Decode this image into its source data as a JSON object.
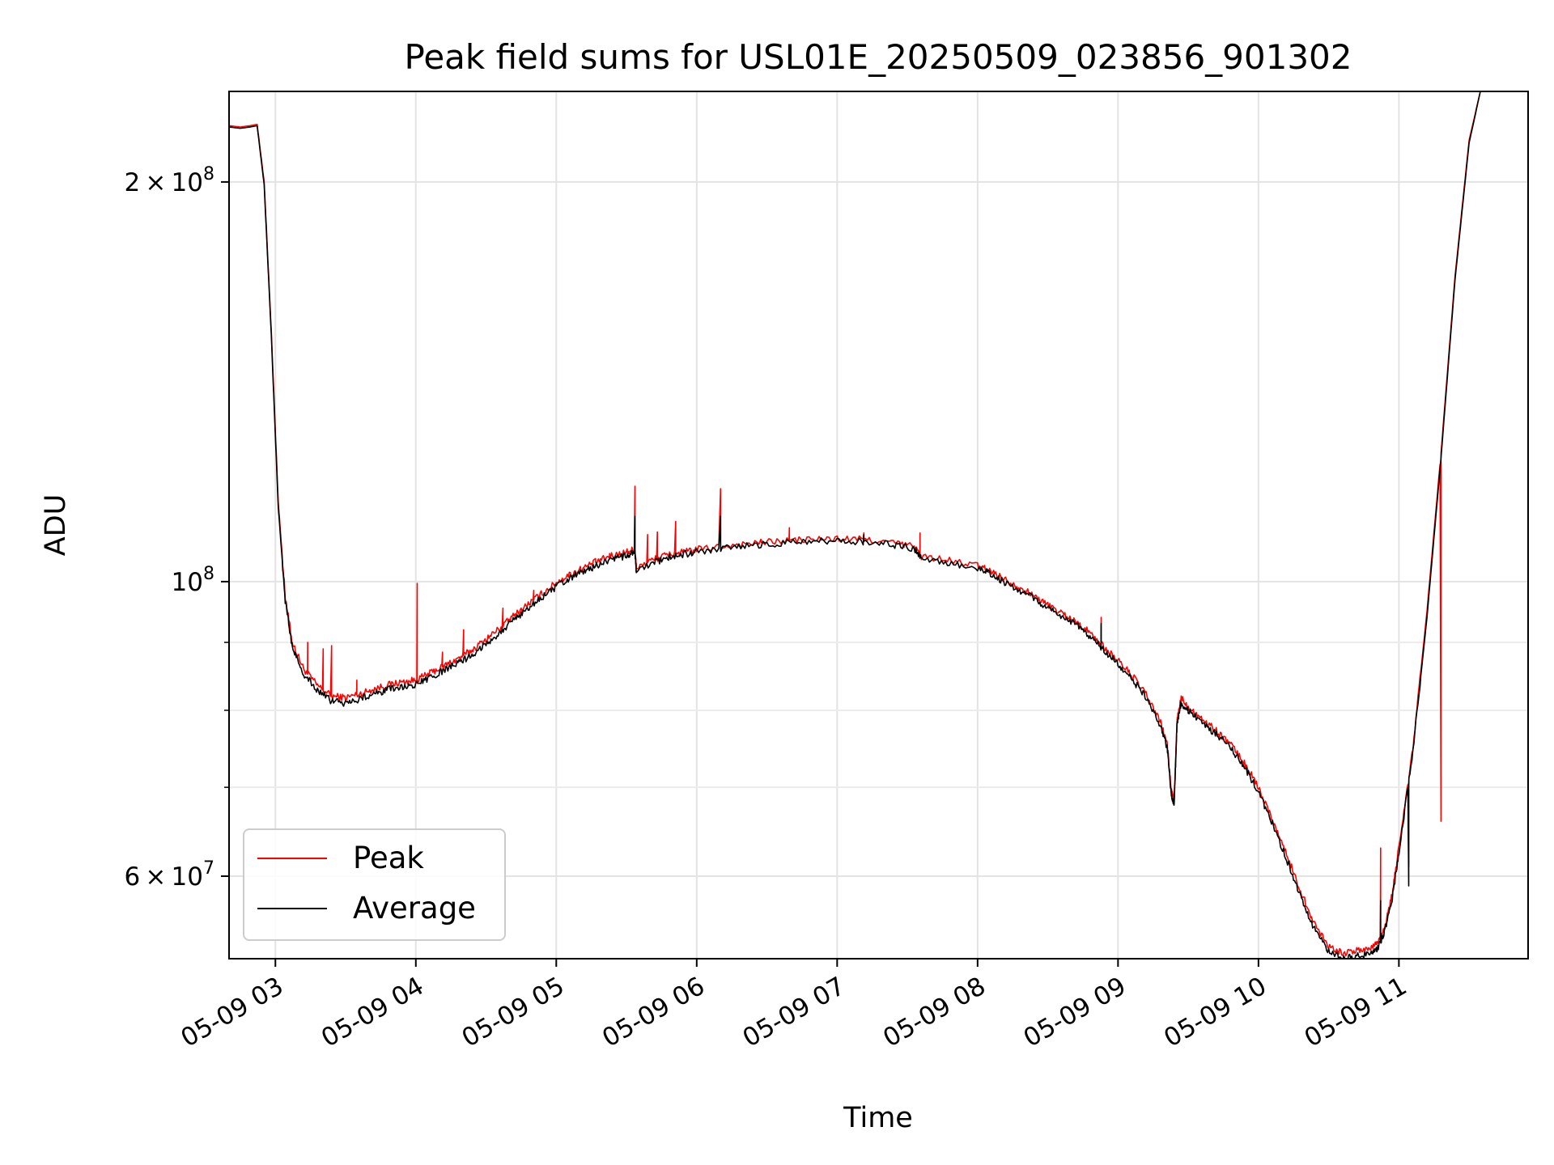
{
  "chart_data": {
    "type": "line",
    "title": "Peak field sums for USL01E_20250509_023856_901302",
    "xlabel": "Time",
    "ylabel": "ADU",
    "x_unit": "hour of 2025-05-09",
    "xlim": [
      2.67,
      11.92
    ],
    "ylim": [
      52000000,
      234000000
    ],
    "yscale": "log",
    "grid": true,
    "legend": "lower-left",
    "x_ticks": [
      {
        "value": 3,
        "label": "05-09 03"
      },
      {
        "value": 4,
        "label": "05-09 04"
      },
      {
        "value": 5,
        "label": "05-09 05"
      },
      {
        "value": 6,
        "label": "05-09 06"
      },
      {
        "value": 7,
        "label": "05-09 07"
      },
      {
        "value": 8,
        "label": "05-09 08"
      },
      {
        "value": 9,
        "label": "05-09 09"
      },
      {
        "value": 10,
        "label": "05-09 10"
      },
      {
        "value": 11,
        "label": "05-09 11"
      }
    ],
    "y_ticks": [
      {
        "value": 200000000,
        "base": "2",
        "exp": "8"
      },
      {
        "value": 100000000,
        "base": "",
        "exp": "8"
      },
      {
        "value": 60000000,
        "base": "6",
        "exp": "7"
      }
    ],
    "y_minor": [
      70000000,
      80000000,
      90000000
    ],
    "series": [
      {
        "name": "Peak",
        "color": "#ff0000",
        "points": [
          [
            2.67,
            220500000
          ],
          [
            2.75,
            220000000
          ],
          [
            2.82,
            220500000
          ],
          [
            2.87,
            221000000
          ],
          [
            2.92,
            200000000
          ],
          [
            2.97,
            155000000
          ],
          [
            3.02,
            115000000
          ],
          [
            3.07,
            97500000
          ],
          [
            3.12,
            90000000
          ],
          [
            3.2,
            86000000
          ],
          [
            3.3,
            83500000
          ],
          [
            3.4,
            82000000
          ],
          [
            3.5,
            81800000
          ],
          [
            3.6,
            82300000
          ],
          [
            3.7,
            83000000
          ],
          [
            3.8,
            83600000
          ],
          [
            3.9,
            84000000
          ],
          [
            4.0,
            84300000
          ],
          [
            4.1,
            85300000
          ],
          [
            4.2,
            86400000
          ],
          [
            4.3,
            87500000
          ],
          [
            4.4,
            88800000
          ],
          [
            4.5,
            90500000
          ],
          [
            4.6,
            92300000
          ],
          [
            4.7,
            94300000
          ],
          [
            4.8,
            96200000
          ],
          [
            4.9,
            98000000
          ],
          [
            5.0,
            99800000
          ],
          [
            5.1,
            101300000
          ],
          [
            5.2,
            102500000
          ],
          [
            5.3,
            103700000
          ],
          [
            5.4,
            104600000
          ],
          [
            5.5,
            105300000
          ],
          [
            5.56,
            105800000
          ],
          [
            5.57,
            102500000
          ],
          [
            5.7,
            104000000
          ],
          [
            5.8,
            104800000
          ],
          [
            5.9,
            105200000
          ],
          [
            6.0,
            105700000
          ],
          [
            6.2,
            106400000
          ],
          [
            6.4,
            106900000
          ],
          [
            6.6,
            107300000
          ],
          [
            6.8,
            107600000
          ],
          [
            7.0,
            107700000
          ],
          [
            7.2,
            107600000
          ],
          [
            7.4,
            107000000
          ],
          [
            7.55,
            106300000
          ],
          [
            7.6,
            104500000
          ],
          [
            7.8,
            103700000
          ],
          [
            8.0,
            102800000
          ],
          [
            8.1,
            101800000
          ],
          [
            8.2,
            100300000
          ],
          [
            8.3,
            99000000
          ],
          [
            8.4,
            97600000
          ],
          [
            8.5,
            96000000
          ],
          [
            8.6,
            94700000
          ],
          [
            8.7,
            93300000
          ],
          [
            8.8,
            91500000
          ],
          [
            8.9,
            89300000
          ],
          [
            9.0,
            87200000
          ],
          [
            9.1,
            85000000
          ],
          [
            9.2,
            82200000
          ],
          [
            9.3,
            78500000
          ],
          [
            9.35,
            75500000
          ],
          [
            9.38,
            69500000
          ],
          [
            9.4,
            68500000
          ],
          [
            9.42,
            78500000
          ],
          [
            9.45,
            81800000
          ],
          [
            9.5,
            80500000
          ],
          [
            9.6,
            78800000
          ],
          [
            9.7,
            77200000
          ],
          [
            9.8,
            75500000
          ],
          [
            9.9,
            73000000
          ],
          [
            10.0,
            70000000
          ],
          [
            10.1,
            66200000
          ],
          [
            10.2,
            62300000
          ],
          [
            10.3,
            58500000
          ],
          [
            10.4,
            55200000
          ],
          [
            10.5,
            53200000
          ],
          [
            10.6,
            52500000
          ],
          [
            10.7,
            52700000
          ],
          [
            10.8,
            53000000
          ],
          [
            10.85,
            53500000
          ],
          [
            10.9,
            55000000
          ],
          [
            10.95,
            58000000
          ],
          [
            11.0,
            63000000
          ],
          [
            11.1,
            75000000
          ],
          [
            11.2,
            95000000
          ],
          [
            11.3,
            125000000
          ],
          [
            11.4,
            170000000
          ],
          [
            11.5,
            215000000
          ],
          [
            11.58,
            234000000
          ]
        ],
        "spikes": [
          [
            3.23,
            90000000
          ],
          [
            3.34,
            89000000
          ],
          [
            3.4,
            89500000
          ],
          [
            3.58,
            84300000
          ],
          [
            4.01,
            99700000
          ],
          [
            4.19,
            88500000
          ],
          [
            4.34,
            92000000
          ],
          [
            4.62,
            95500000
          ],
          [
            4.84,
            98500000
          ],
          [
            5.28,
            104000000
          ],
          [
            5.38,
            105000000
          ],
          [
            5.56,
            118000000
          ],
          [
            5.65,
            108500000
          ],
          [
            5.72,
            109000000
          ],
          [
            5.85,
            111000000
          ],
          [
            6.17,
            117500000
          ],
          [
            6.46,
            107500000
          ],
          [
            6.66,
            109800000
          ],
          [
            7.19,
            108800000
          ],
          [
            7.59,
            108800000
          ],
          [
            8.88,
            94000000
          ],
          [
            10.87,
            63000000
          ],
          [
            11.07,
            61000000
          ],
          [
            11.3,
            66000000
          ]
        ]
      },
      {
        "name": "Average",
        "color": "#000000",
        "points": [
          [
            2.67,
            220000000
          ],
          [
            2.75,
            219500000
          ],
          [
            2.82,
            220000000
          ],
          [
            2.87,
            220500000
          ],
          [
            2.92,
            199000000
          ],
          [
            2.97,
            154000000
          ],
          [
            3.02,
            114000000
          ],
          [
            3.07,
            96800000
          ],
          [
            3.12,
            89300000
          ],
          [
            3.2,
            85300000
          ],
          [
            3.3,
            82800000
          ],
          [
            3.4,
            81300000
          ],
          [
            3.5,
            81000000
          ],
          [
            3.6,
            81600000
          ],
          [
            3.7,
            82300000
          ],
          [
            3.8,
            82900000
          ],
          [
            3.9,
            83300000
          ],
          [
            4.0,
            83600000
          ],
          [
            4.1,
            84600000
          ],
          [
            4.2,
            85700000
          ],
          [
            4.3,
            86800000
          ],
          [
            4.4,
            88100000
          ],
          [
            4.5,
            89800000
          ],
          [
            4.6,
            91600000
          ],
          [
            4.7,
            93600000
          ],
          [
            4.8,
            95500000
          ],
          [
            4.9,
            97300000
          ],
          [
            5.0,
            99100000
          ],
          [
            5.1,
            100600000
          ],
          [
            5.2,
            101800000
          ],
          [
            5.3,
            103000000
          ],
          [
            5.4,
            103900000
          ],
          [
            5.5,
            104600000
          ],
          [
            5.56,
            105100000
          ],
          [
            5.57,
            101800000
          ],
          [
            5.7,
            103400000
          ],
          [
            5.8,
            104300000
          ],
          [
            5.9,
            104800000
          ],
          [
            6.0,
            105300000
          ],
          [
            6.2,
            106000000
          ],
          [
            6.4,
            106500000
          ],
          [
            6.6,
            106900000
          ],
          [
            6.8,
            107200000
          ],
          [
            7.0,
            107300000
          ],
          [
            7.2,
            107200000
          ],
          [
            7.4,
            106600000
          ],
          [
            7.55,
            105900000
          ],
          [
            7.6,
            104000000
          ],
          [
            7.8,
            103200000
          ],
          [
            8.0,
            102300000
          ],
          [
            8.1,
            101300000
          ],
          [
            8.2,
            99800000
          ],
          [
            8.3,
            98500000
          ],
          [
            8.4,
            97100000
          ],
          [
            8.5,
            95500000
          ],
          [
            8.6,
            94200000
          ],
          [
            8.7,
            92800000
          ],
          [
            8.8,
            91000000
          ],
          [
            8.9,
            88800000
          ],
          [
            9.0,
            86700000
          ],
          [
            9.1,
            84500000
          ],
          [
            9.2,
            81700000
          ],
          [
            9.3,
            78000000
          ],
          [
            9.35,
            75000000
          ],
          [
            9.38,
            69000000
          ],
          [
            9.4,
            68000000
          ],
          [
            9.42,
            78000000
          ],
          [
            9.45,
            81000000
          ],
          [
            9.5,
            80000000
          ],
          [
            9.6,
            78300000
          ],
          [
            9.7,
            76700000
          ],
          [
            9.8,
            75000000
          ],
          [
            9.9,
            72500000
          ],
          [
            10.0,
            69500000
          ],
          [
            10.1,
            65700000
          ],
          [
            10.2,
            61800000
          ],
          [
            10.3,
            58000000
          ],
          [
            10.4,
            54700000
          ],
          [
            10.5,
            52700000
          ],
          [
            10.6,
            52000000
          ],
          [
            10.7,
            52200000
          ],
          [
            10.8,
            52500000
          ],
          [
            10.85,
            53000000
          ],
          [
            10.9,
            54500000
          ],
          [
            10.95,
            57500000
          ],
          [
            11.0,
            62500000
          ],
          [
            11.1,
            74500000
          ],
          [
            11.2,
            94000000
          ],
          [
            11.3,
            124000000
          ],
          [
            11.4,
            169000000
          ],
          [
            11.5,
            214000000
          ],
          [
            11.58,
            234000000
          ]
        ],
        "spikes": [
          [
            5.56,
            112000000
          ],
          [
            6.17,
            112000000
          ],
          [
            7.19,
            108500000
          ],
          [
            8.88,
            93000000
          ],
          [
            10.87,
            57500000
          ],
          [
            11.07,
            59000000
          ]
        ]
      }
    ]
  }
}
